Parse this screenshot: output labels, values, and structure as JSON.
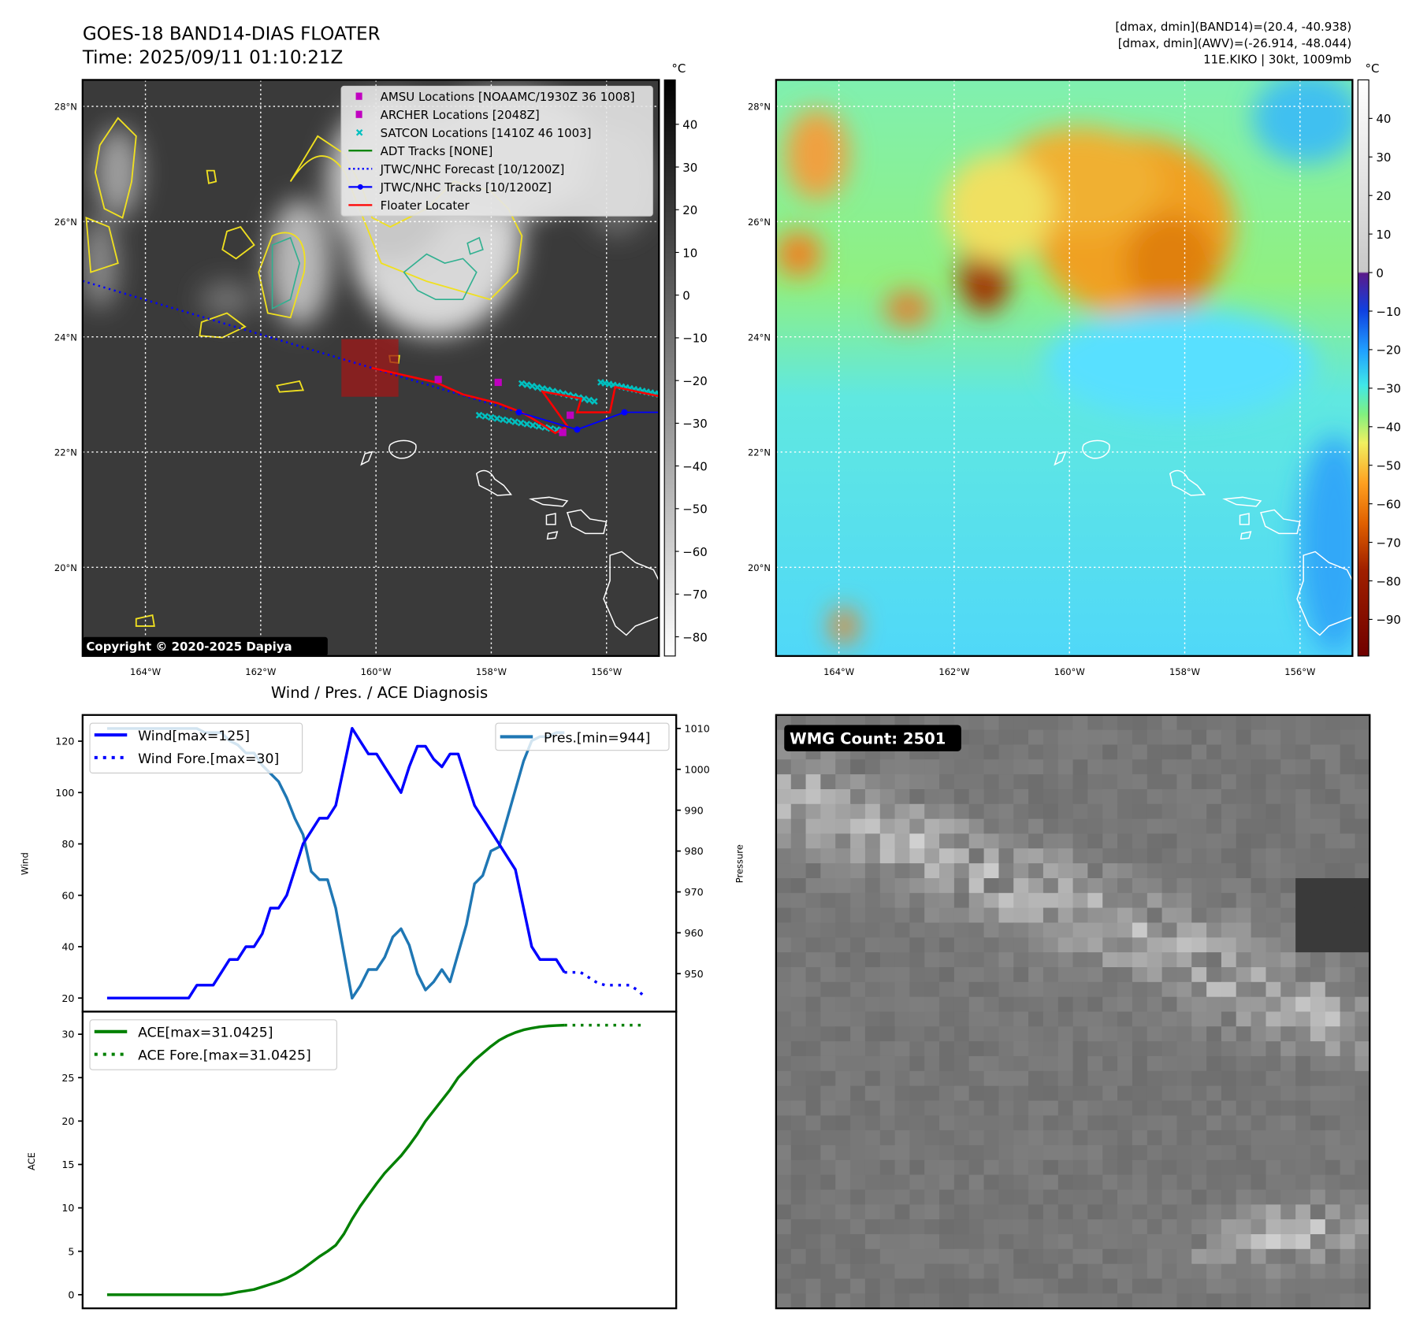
{
  "header": {
    "title": "GOES-18 BAND14-DIAS FLOATER",
    "time": "Time: 2025/09/11 01:10:21Z",
    "info_lines": [
      "[dmax, dmin](BAND14)=(20.4, -40.938)",
      "[dmax, dmin](AWV)=(-26.914, -48.044)",
      "11E.KIKO | 30kt, 1009mb"
    ]
  },
  "maps": {
    "lon_ticks": [
      "164°W",
      "162°W",
      "160°W",
      "158°W",
      "156°W"
    ],
    "lat_ticks": [
      "28°N",
      "26°N",
      "24°N",
      "22°N",
      "20°N"
    ],
    "lon_values": [
      -164,
      -162,
      -160,
      -158,
      -156
    ],
    "lat_values": [
      28,
      26,
      24,
      22,
      20
    ],
    "lon_range": [
      -165.09,
      -155.09
    ],
    "lat_range": [
      18.46,
      28.46
    ],
    "copyright": "Copyright © 2020-2025 Dapiya",
    "legend": [
      {
        "label": "AMSU Locations [NOAAMC/1930Z 36 1008]",
        "color": "#c000c0",
        "marker": "square"
      },
      {
        "label": "ARCHER Locations [2048Z]",
        "color": "#c000c0",
        "marker": "square"
      },
      {
        "label": "SATCON Locations [1410Z 46 1003]",
        "color": "#00c0c0",
        "marker": "x"
      },
      {
        "label": "ADT Tracks [NONE]",
        "color": "#008000",
        "marker": "line"
      },
      {
        "label": "JTWC/NHC Forecast [10/1200Z]",
        "color": "#0000ff",
        "marker": "dotted"
      },
      {
        "label": "JTWC/NHC Tracks [10/1200Z]",
        "color": "#0000ff",
        "marker": "line-dot"
      },
      {
        "label": "Floater Locater",
        "color": "#ff0000",
        "marker": "line"
      }
    ],
    "tracks": {
      "jtwc_forecast": [
        [
          -165.09,
          24.97
        ],
        [
          -160.07,
          23.46
        ],
        [
          -157.52,
          22.69
        ]
      ],
      "jtwc_track": [
        [
          -157.52,
          22.69
        ],
        [
          -156.51,
          22.39
        ],
        [
          -155.69,
          22.69
        ],
        [
          -155.09,
          22.69
        ]
      ],
      "floater_locater": [
        [
          -160.07,
          23.46
        ],
        [
          -158.96,
          23.21
        ],
        [
          -158.49,
          23.0
        ],
        [
          -157.89,
          22.85
        ],
        [
          -157.47,
          22.69
        ],
        [
          -157.07,
          22.45
        ],
        [
          -156.89,
          22.33
        ],
        [
          -156.68,
          22.45
        ],
        [
          -157.11,
          23.05
        ],
        [
          -156.44,
          22.93
        ],
        [
          -156.51,
          22.69
        ],
        [
          -155.94,
          22.69
        ],
        [
          -155.85,
          23.13
        ],
        [
          -155.09,
          22.97
        ]
      ],
      "fix_markers": [
        [
          -158.92,
          23.26
        ],
        [
          -157.88,
          23.21
        ],
        [
          -156.63,
          22.64
        ],
        [
          -156.76,
          22.34
        ]
      ],
      "satcon_segments": [
        [
          [
            -157.47,
            23.19
          ],
          [
            -156.21,
            22.88
          ]
        ],
        [
          [
            -158.21,
            22.64
          ],
          [
            -156.76,
            22.37
          ]
        ],
        [
          [
            -156.1,
            23.21
          ],
          [
            -155.09,
            23.0
          ]
        ]
      ],
      "floater_box": [
        -160.6,
        22.96,
        -159.61,
        23.96
      ]
    },
    "left_colorbar": {
      "unit": "°C",
      "ticks": [
        40,
        30,
        20,
        10,
        0,
        -10,
        -20,
        -30,
        -40,
        -50,
        -60,
        -70,
        -80
      ],
      "range": [
        -84.5,
        50.4
      ]
    },
    "right_colorbar": {
      "unit": "°C",
      "ticks": [
        40,
        30,
        20,
        10,
        0,
        -10,
        -20,
        -30,
        -40,
        -50,
        -60,
        -70,
        -80,
        -90
      ],
      "range": [
        -99.5,
        50
      ]
    }
  },
  "colors": {
    "wind": "#0000ff",
    "pressure": "#1f77b4",
    "ace": "#008000",
    "track": "#0000ff",
    "floater": "#ff0000",
    "satcon": "#00c0c0",
    "fix": "#c000c0"
  },
  "chart_data": [
    {
      "type": "line",
      "title": "Wind / Pres. / ACE Diagnosis",
      "ylabel": "Wind",
      "y2label": "Pressure",
      "ylim": [
        14.7,
        130.2
      ],
      "y2lim": [
        940.7,
        1013.3
      ],
      "xlim": [
        -3,
        69.7
      ],
      "yticks": [
        20,
        40,
        60,
        80,
        100,
        120
      ],
      "y2ticks": [
        950,
        960,
        970,
        980,
        990,
        1000,
        1010
      ],
      "series": [
        {
          "name": "Wind[max=125]",
          "axis": "left",
          "style": "solid",
          "x_start": 0,
          "values": [
            20,
            20,
            20,
            20,
            20,
            20,
            20,
            20,
            20,
            20,
            20,
            25,
            25,
            25,
            30,
            35,
            35,
            40,
            40,
            45,
            55,
            55,
            60,
            70,
            80,
            85,
            90,
            90,
            95,
            110,
            125,
            120,
            115,
            115,
            110,
            105,
            100,
            110,
            118,
            118,
            113,
            110,
            115,
            115,
            105,
            95,
            90,
            85,
            80,
            75,
            70,
            55,
            40,
            35,
            35,
            35,
            30
          ]
        },
        {
          "name": "Wind Fore.[max=30]",
          "axis": "left",
          "style": "dotted",
          "x_start": 56,
          "values": [
            30,
            30,
            30,
            28,
            26,
            25,
            25,
            25,
            25,
            23,
            20
          ]
        },
        {
          "name": "Pres.[min=944]",
          "axis": "right",
          "style": "solid",
          "x_start": 0,
          "values": [
            1010,
            1010,
            1010,
            1010,
            1010,
            1010,
            1010,
            1010,
            1010,
            1010,
            1010,
            1010,
            1009,
            1009,
            1009,
            1007,
            1006,
            1004,
            1004,
            1001,
            999,
            997,
            993,
            988,
            984,
            975,
            973,
            973,
            966,
            955,
            944,
            947,
            951,
            951,
            954,
            959,
            961,
            957,
            950,
            946,
            948,
            951,
            948,
            955,
            962,
            972,
            974,
            980,
            981,
            988,
            995,
            1002,
            1007,
            1008,
            1008,
            1009,
            1009
          ]
        }
      ]
    },
    {
      "type": "line",
      "ylabel": "ACE",
      "ylim": [
        -1.57,
        32.6
      ],
      "xlim": [
        -3,
        69.7
      ],
      "yticks": [
        0,
        5,
        10,
        15,
        20,
        25,
        30
      ],
      "series": [
        {
          "name": "ACE[max=31.0425]",
          "style": "solid",
          "x_start": 0,
          "values": [
            0,
            0,
            0,
            0,
            0,
            0,
            0,
            0,
            0,
            0,
            0,
            0,
            0,
            0,
            0,
            0.1,
            0.3,
            0.45,
            0.6,
            0.9,
            1.2,
            1.5,
            1.9,
            2.4,
            3.0,
            3.7,
            4.4,
            5.0,
            5.7,
            7.0,
            8.7,
            10.2,
            11.5,
            12.8,
            14.0,
            15.0,
            16.0,
            17.2,
            18.5,
            20.0,
            21.2,
            22.4,
            23.6,
            25.0,
            26.0,
            27.0,
            27.8,
            28.6,
            29.3,
            29.8,
            30.2,
            30.5,
            30.7,
            30.85,
            30.95,
            31.0,
            31.04
          ]
        },
        {
          "name": "ACE Fore.[max=31.0425]",
          "style": "dotted",
          "x_start": 56,
          "values": [
            31.04,
            31.04,
            31.04,
            31.04,
            31.04,
            31.04,
            31.04,
            31.04,
            31.04,
            31.04,
            31.04
          ]
        }
      ]
    }
  ],
  "wmg": {
    "label": "WMG Count: 2501"
  }
}
